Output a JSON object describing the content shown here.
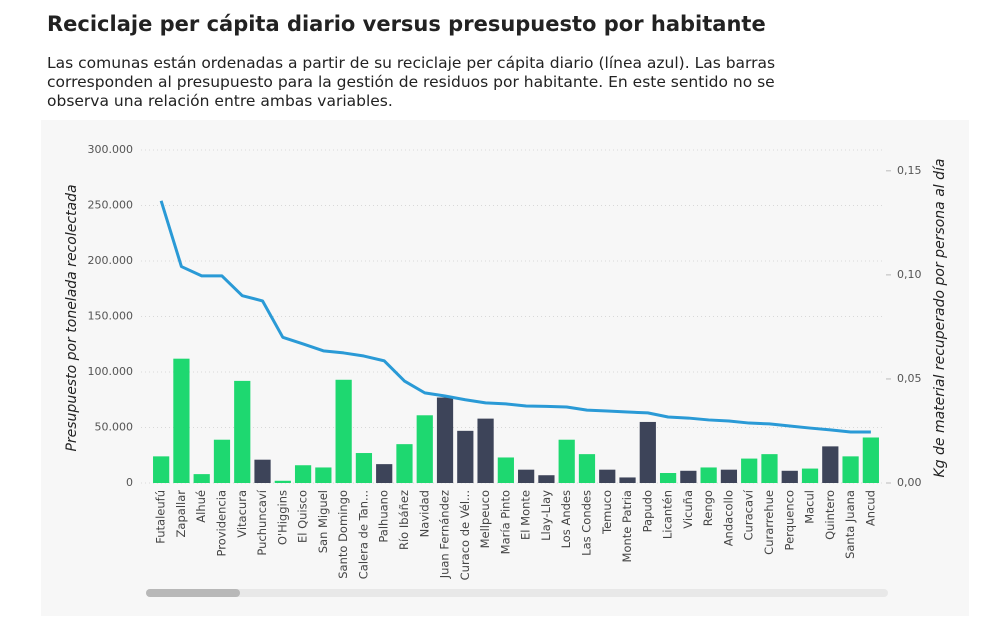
{
  "chart_data": {
    "type": "bar_line",
    "title": "Reciclaje per cápita diario versus presupuesto por habitante",
    "subtitle": "Las comunas están ordenadas a partir de su reciclaje per cápita diario (línea azul). Las barras corresponden al presupuesto para la gestión de residuos por habitante. En este sentido no se observa una relación entre ambas variables.",
    "y_label": "Presupuesto por tonelada recolectada",
    "y2_label": "Kg de material recuperado por persona al día",
    "categories": [
      "Futaleufú",
      "Zapallar",
      "Alhué",
      "Providencia",
      "Vitacura",
      "Puchuncaví",
      "O'Higgins",
      "El Quisco",
      "San Miguel",
      "Santo Domingo",
      "Calera de Tan...",
      "Palhuano",
      "Río Ibáñez",
      "Navidad",
      "Juan Fernández",
      "Curaco de Vél...",
      "Mellpeuco",
      "María Pinto",
      "El Monte",
      "Llay-Llay",
      "Los Andes",
      "Las Condes",
      "Temuco",
      "Monte Patria",
      "Papudo",
      "Licantén",
      "Vicuña",
      "Rengo",
      "Andacollo",
      "Curacaví",
      "Curarrehue",
      "Perquenco",
      "Macul",
      "Quintero",
      "Santa Juana",
      "Ancud"
    ],
    "values": [
      24000,
      112000,
      8000,
      39000,
      92000,
      21000,
      2000,
      16000,
      14000,
      93000,
      27000,
      17000,
      35000,
      61000,
      77000,
      47000,
      58000,
      23000,
      12000,
      7000,
      39000,
      26000,
      12000,
      5000,
      55000,
      9000,
      11000,
      14000,
      12000,
      22000,
      26000,
      11000,
      13000,
      33000,
      24000,
      41000
    ],
    "bar_colors": [
      "#1ed870",
      "#1ed870",
      "#1ed870",
      "#1ed870",
      "#1ed870",
      "#3d4459",
      "#1ed870",
      "#1ed870",
      "#1ed870",
      "#1ed870",
      "#1ed870",
      "#3d4459",
      "#1ed870",
      "#1ed870",
      "#3d4459",
      "#3d4459",
      "#3d4459",
      "#1ed870",
      "#3d4459",
      "#3d4459",
      "#1ed870",
      "#1ed870",
      "#3d4459",
      "#3d4459",
      "#3d4459",
      "#1ed870",
      "#3d4459",
      "#1ed870",
      "#3d4459",
      "#1ed870",
      "#1ed870",
      "#3d4459",
      "#1ed870",
      "#3d4459",
      "#1ed870",
      "#1ed870"
    ],
    "line": {
      "axis": "y2",
      "color": "#2a9ad6",
      "values": [
        0.1356,
        0.104,
        0.0995,
        0.0995,
        0.09,
        0.0875,
        0.07,
        0.0668,
        0.0635,
        0.0625,
        0.061,
        0.0587,
        0.049,
        0.0433,
        0.0418,
        0.04,
        0.0385,
        0.038,
        0.037,
        0.0368,
        0.0365,
        0.035,
        0.0346,
        0.0341,
        0.0337,
        0.0317,
        0.0312,
        0.0303,
        0.0298,
        0.0288,
        0.0284,
        0.0274,
        0.0264,
        0.0255,
        0.0245,
        0.0245
      ]
    },
    "ylim": [
      0,
      300000
    ],
    "yticks": [
      0,
      {
        "value": 50000,
        "label": "50.000"
      },
      {
        "value": 100000,
        "label": "100.000"
      },
      {
        "value": 150000,
        "label": "150.000"
      },
      {
        "value": 200000,
        "label": "200.000"
      },
      {
        "value": 250000,
        "label": "250.000"
      },
      {
        "value": 300000,
        "label": "300.000"
      }
    ],
    "y2lim": [
      0,
      0.16
    ],
    "y2ticks": [
      {
        "value": 0,
        "label": "0,00"
      },
      {
        "value": 0.05,
        "label": "0,05"
      },
      {
        "value": 0.1,
        "label": "0,10"
      },
      {
        "value": 0.15,
        "label": "0,15"
      }
    ],
    "grid": true
  }
}
